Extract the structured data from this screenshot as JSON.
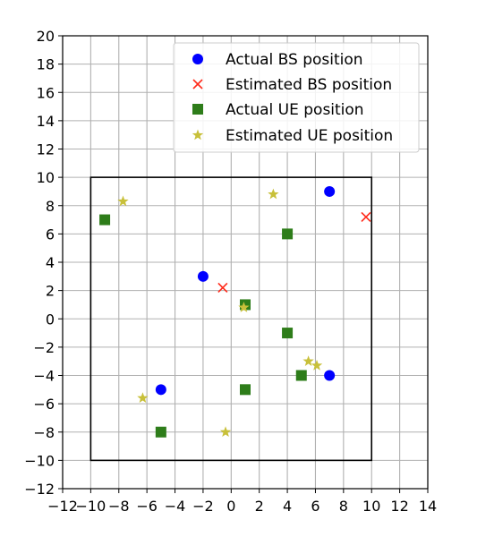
{
  "chart_data": {
    "type": "scatter",
    "title": "",
    "xlabel": "",
    "ylabel": "",
    "xlim": [
      -12,
      14
    ],
    "ylim": [
      -12,
      20
    ],
    "xticks": [
      -12,
      -10,
      -8,
      -6,
      -4,
      -2,
      0,
      2,
      4,
      6,
      8,
      10,
      12,
      14
    ],
    "yticks": [
      -12,
      -10,
      -8,
      -6,
      -4,
      -2,
      0,
      2,
      4,
      6,
      8,
      10,
      12,
      14,
      16,
      18,
      20
    ],
    "xtick_labels": [
      "−12",
      "−10",
      "−8",
      "−6",
      "−4",
      "−2",
      "0",
      "2",
      "4",
      "6",
      "8",
      "10",
      "12",
      "14"
    ],
    "ytick_labels": [
      "−12",
      "−10",
      "−8",
      "−6",
      "−4",
      "−2",
      "0",
      "2",
      "4",
      "6",
      "8",
      "10",
      "12",
      "14",
      "16",
      "18",
      "20"
    ],
    "grid": true,
    "legend_position": "top-right",
    "region_box": {
      "x": [
        -10,
        10
      ],
      "y": [
        -10,
        10
      ]
    },
    "series": [
      {
        "name": "Actual BS position",
        "marker": "circle",
        "color": "#0000ff",
        "points": [
          [
            -2,
            3
          ],
          [
            7,
            9
          ],
          [
            -5,
            -5
          ],
          [
            7,
            -4
          ]
        ]
      },
      {
        "name": "Estimated BS position",
        "marker": "x",
        "color": "#ff2a1a",
        "points": [
          [
            -0.6,
            2.2
          ],
          [
            9.6,
            7.2
          ]
        ]
      },
      {
        "name": "Actual UE position",
        "marker": "square",
        "color": "#2e7d1a",
        "points": [
          [
            -9,
            7
          ],
          [
            4,
            6
          ],
          [
            1,
            1
          ],
          [
            4,
            -1
          ],
          [
            5,
            -4
          ],
          [
            1,
            -5
          ],
          [
            -5,
            -8
          ]
        ]
      },
      {
        "name": "Estimated UE position",
        "marker": "star",
        "color": "#c8c03a",
        "points": [
          [
            -7.7,
            8.3
          ],
          [
            3,
            8.8
          ],
          [
            0.9,
            0.8
          ],
          [
            5.5,
            -3
          ],
          [
            6.1,
            -3.3
          ],
          [
            -6.3,
            -5.6
          ],
          [
            -0.4,
            -8
          ]
        ]
      }
    ]
  }
}
